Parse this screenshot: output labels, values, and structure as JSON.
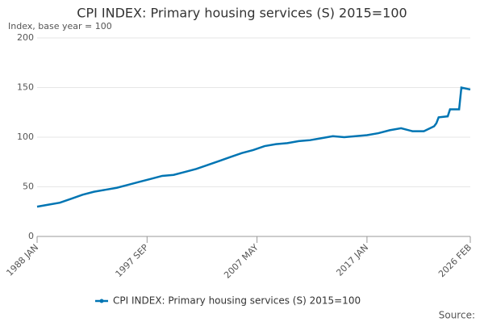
{
  "chart_data": {
    "type": "line",
    "title": "CPI INDEX: Primary housing services (S) 2015=100",
    "y_label": "Index, base year = 100",
    "source": "Source:",
    "x": [
      1988,
      1989,
      1990,
      1991,
      1992,
      1993,
      1994,
      1995,
      1996,
      1997,
      1998,
      1999,
      2000,
      2001,
      2002,
      2003,
      2004,
      2005,
      2006,
      2007,
      2008,
      2009,
      2010,
      2011,
      2012,
      2013,
      2014,
      2015,
      2016,
      2017,
      2018,
      2019,
      2020,
      2021,
      2022,
      2022.9,
      2023.1,
      2023.3,
      2024.1,
      2024.3,
      2025.1,
      2025.3,
      2026.083
    ],
    "series": [
      {
        "name": "CPI INDEX: Primary housing services (S) 2015=100",
        "color": "#0075b3",
        "values": [
          30,
          32,
          34,
          38,
          42,
          45,
          47,
          49,
          52,
          55,
          58,
          61,
          62,
          65,
          68,
          72,
          76,
          80,
          84,
          87,
          91,
          93,
          94,
          96,
          97,
          99,
          101,
          100,
          101,
          102,
          104,
          107,
          109,
          106,
          106,
          111,
          114,
          120,
          121,
          128,
          128,
          150,
          148
        ]
      }
    ],
    "xlim": [
      1988,
      2026.083
    ],
    "xticks": [
      {
        "value": 1988,
        "label": "1988 JAN"
      },
      {
        "value": 1997.667,
        "label": "1997 SEP"
      },
      {
        "value": 2007.333,
        "label": "2007 MAY"
      },
      {
        "value": 2017,
        "label": "2017 JAN"
      },
      {
        "value": 2026.083,
        "label": "2026 FEB"
      }
    ],
    "ylim": [
      0,
      200
    ],
    "yticks": [
      0,
      50,
      100,
      150,
      200
    ],
    "grid": true
  }
}
